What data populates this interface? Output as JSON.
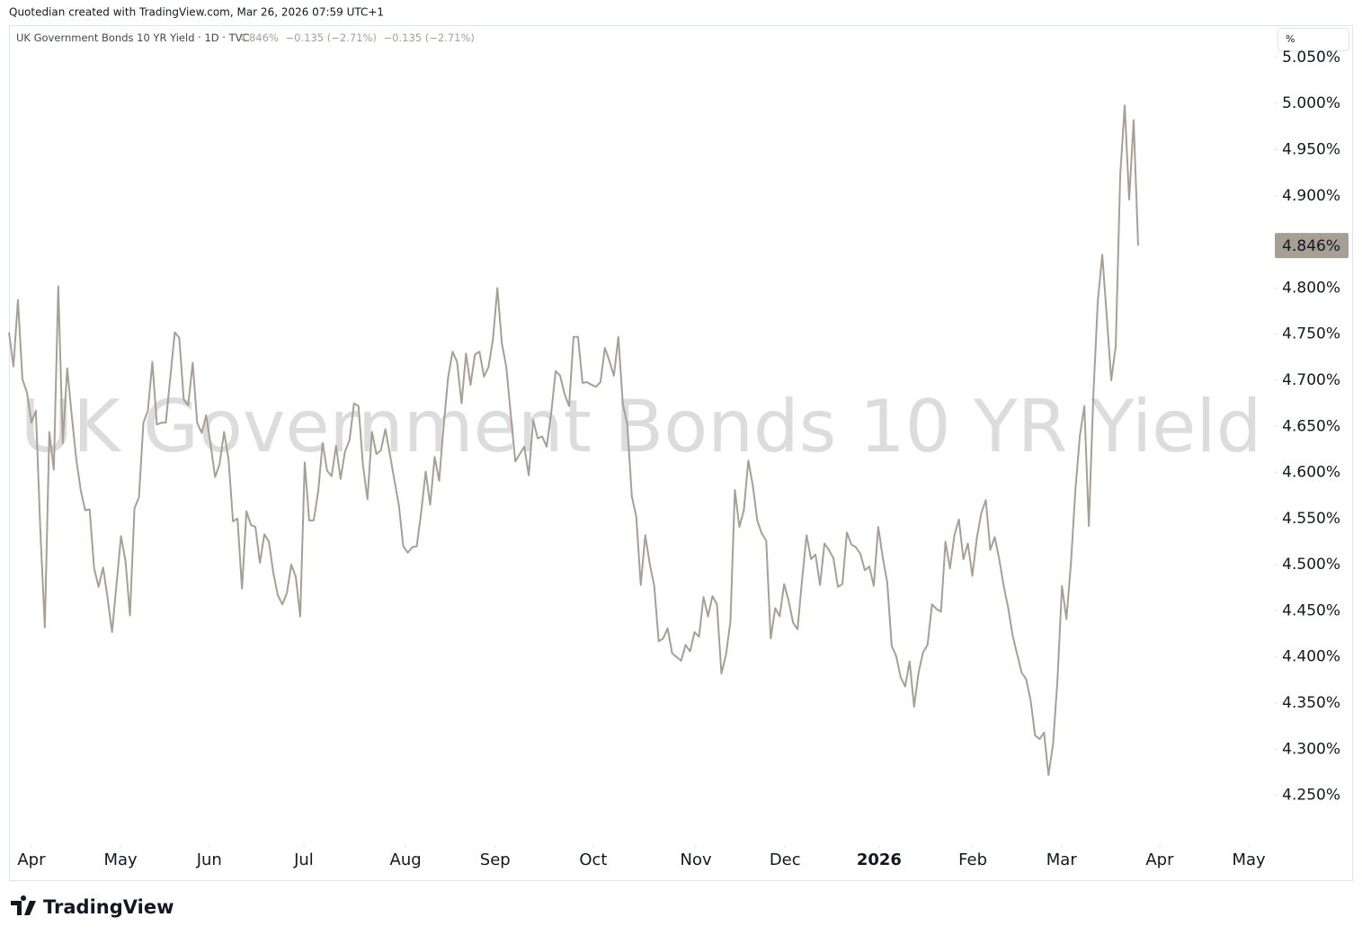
{
  "header": {
    "credit": "Quotedian created with TradingView.com, Mar 26, 2026 07:59 UTC+1"
  },
  "legend": {
    "symbol": "UK Government Bonds 10 YR Yield",
    "interval": "1D",
    "exchange": "TVC",
    "last": "4.846%",
    "change": "−0.135 (−2.71%)",
    "change_session": "−0.135 (−2.71%)"
  },
  "scale_button": "%",
  "footer": {
    "brand": "TradingView"
  },
  "chart_data": {
    "type": "line",
    "title": "UK Government Bonds 10 YR Yield",
    "color": "#a89f94",
    "grid": false,
    "last_value_label": "4.846%",
    "values": [
      4.752,
      4.715,
      4.787,
      4.701,
      4.687,
      4.654,
      4.667,
      4.537,
      4.432,
      4.644,
      4.603,
      4.802,
      4.632,
      4.713,
      4.662,
      4.615,
      4.581,
      4.559,
      4.56,
      4.496,
      4.476,
      4.497,
      4.464,
      4.427,
      4.479,
      4.531,
      4.504,
      4.445,
      4.561,
      4.573,
      4.654,
      4.667,
      4.72,
      4.652,
      4.654,
      4.654,
      4.703,
      4.752,
      4.746,
      4.679,
      4.673,
      4.719,
      4.654,
      4.643,
      4.662,
      4.63,
      4.595,
      4.609,
      4.644,
      4.614,
      4.547,
      4.55,
      4.474,
      4.558,
      4.543,
      4.541,
      4.502,
      4.533,
      4.525,
      4.491,
      4.467,
      4.457,
      4.469,
      4.5,
      4.487,
      4.444,
      4.611,
      4.548,
      4.548,
      4.579,
      4.632,
      4.602,
      4.596,
      4.629,
      4.593,
      4.623,
      4.635,
      4.675,
      4.672,
      4.608,
      4.571,
      4.644,
      4.62,
      4.624,
      4.647,
      4.62,
      4.592,
      4.565,
      4.52,
      4.513,
      4.519,
      4.52,
      4.557,
      4.601,
      4.565,
      4.617,
      4.591,
      4.65,
      4.703,
      4.731,
      4.72,
      4.675,
      4.729,
      4.695,
      4.728,
      4.731,
      4.704,
      4.714,
      4.744,
      4.8,
      4.74,
      4.714,
      4.662,
      4.612,
      4.62,
      4.628,
      4.597,
      4.657,
      4.637,
      4.639,
      4.628,
      4.664,
      4.71,
      4.705,
      4.685,
      4.672,
      4.747,
      4.747,
      4.697,
      4.698,
      4.695,
      4.693,
      4.698,
      4.735,
      4.721,
      4.705,
      4.747,
      4.674,
      4.652,
      4.574,
      4.552,
      4.478,
      4.532,
      4.501,
      4.477,
      4.417,
      4.42,
      4.431,
      4.404,
      4.4,
      4.396,
      4.413,
      4.406,
      4.427,
      4.422,
      4.465,
      4.444,
      4.466,
      4.457,
      4.382,
      4.402,
      4.438,
      4.581,
      4.541,
      4.559,
      4.613,
      4.586,
      4.548,
      4.534,
      4.526,
      4.42,
      4.453,
      4.444,
      4.479,
      4.461,
      4.437,
      4.43,
      4.484,
      4.532,
      4.506,
      4.511,
      4.478,
      4.523,
      4.516,
      4.507,
      4.476,
      4.479,
      4.535,
      4.522,
      4.519,
      4.512,
      4.494,
      4.498,
      4.477,
      4.541,
      4.508,
      4.481,
      4.412,
      4.401,
      4.378,
      4.368,
      4.395,
      4.346,
      4.383,
      4.405,
      4.413,
      4.457,
      4.452,
      4.449,
      4.525,
      4.496,
      4.532,
      4.549,
      4.506,
      4.523,
      4.488,
      4.529,
      4.556,
      4.57,
      4.516,
      4.53,
      4.506,
      4.477,
      4.453,
      4.423,
      4.403,
      4.383,
      4.376,
      4.353,
      4.315,
      4.311,
      4.318,
      4.272,
      4.305,
      4.375,
      4.477,
      4.441,
      4.501,
      4.581,
      4.64,
      4.672,
      4.542,
      4.683,
      4.786,
      4.836,
      4.769,
      4.7,
      4.737,
      4.922,
      4.998,
      4.896,
      4.982,
      4.846
    ],
    "xlim": [
      0,
      282.5
    ],
    "xticks": [
      {
        "value": 5.0,
        "label": "Apr"
      },
      {
        "value": 24.9,
        "label": "May"
      },
      {
        "value": 44.7,
        "label": "Jun"
      },
      {
        "value": 65.8,
        "label": "Jul"
      },
      {
        "value": 88.5,
        "label": "Aug"
      },
      {
        "value": 108.5,
        "label": "Sep"
      },
      {
        "value": 130.4,
        "label": "Oct"
      },
      {
        "value": 153.3,
        "label": "Nov"
      },
      {
        "value": 173.2,
        "label": "Dec"
      },
      {
        "value": 194.2,
        "label": "2026"
      },
      {
        "value": 215.1,
        "label": "Feb"
      },
      {
        "value": 234.9,
        "label": "Mar"
      },
      {
        "value": 256.8,
        "label": "Apr"
      },
      {
        "value": 276.7,
        "label": "May"
      }
    ],
    "ylim": [
      4.196,
      5.085
    ],
    "yticks": [
      {
        "value": 4.25,
        "label": "4.250%"
      },
      {
        "value": 4.3,
        "label": "4.300%"
      },
      {
        "value": 4.35,
        "label": "4.350%"
      },
      {
        "value": 4.4,
        "label": "4.400%"
      },
      {
        "value": 4.45,
        "label": "4.450%"
      },
      {
        "value": 4.5,
        "label": "4.500%"
      },
      {
        "value": 4.55,
        "label": "4.550%"
      },
      {
        "value": 4.6,
        "label": "4.600%"
      },
      {
        "value": 4.65,
        "label": "4.650%"
      },
      {
        "value": 4.7,
        "label": "4.700%"
      },
      {
        "value": 4.75,
        "label": "4.750%"
      },
      {
        "value": 4.8,
        "label": "4.800%"
      },
      {
        "value": 4.85,
        "label": "4.850%"
      },
      {
        "value": 4.9,
        "label": "4.900%"
      },
      {
        "value": 4.95,
        "label": "4.950%"
      },
      {
        "value": 5.0,
        "label": "5.000%"
      },
      {
        "value": 5.05,
        "label": "5.050%"
      }
    ]
  }
}
